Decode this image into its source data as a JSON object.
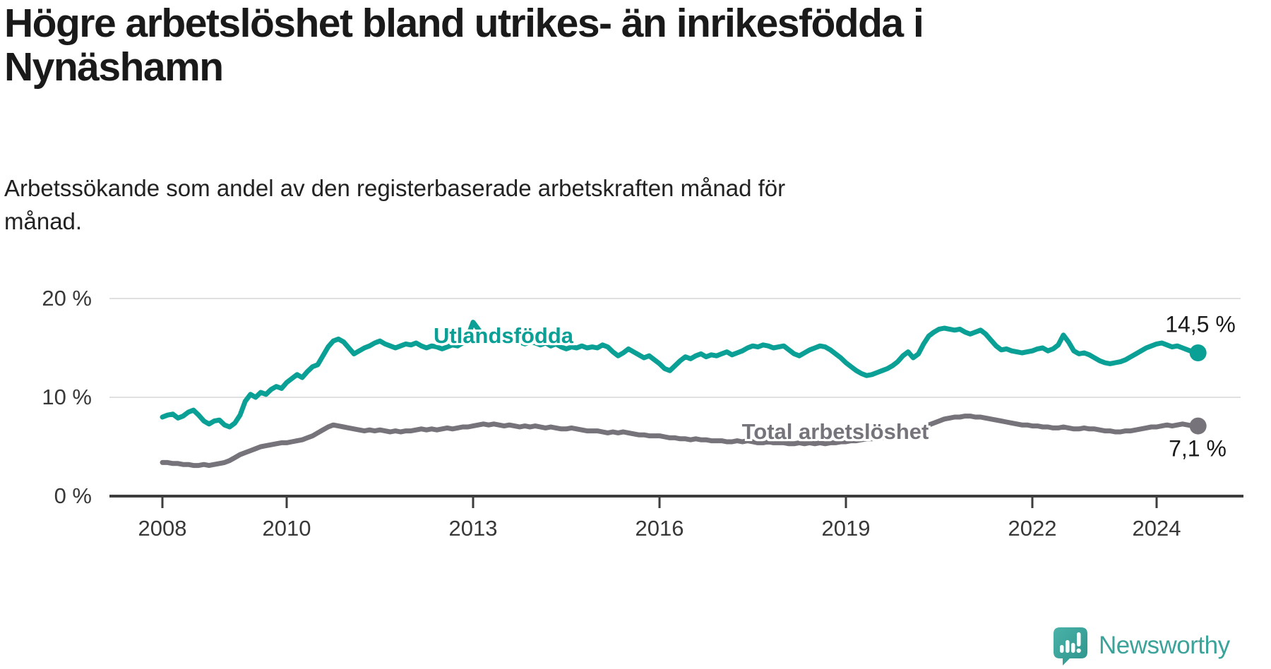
{
  "title": {
    "line1": "Högre arbetslöshet bland utrikes- än inrikesfödda i",
    "line2": "Nynäshamn"
  },
  "subtitle": {
    "line1": "Arbetssökande som andel av den registerbaserade arbetskraften månad för",
    "line2": "månad."
  },
  "branding": {
    "logo_text": "Newsworthy",
    "logo_icon": "newsworthy-speech-bubble-bar-chart-icon"
  },
  "colors": {
    "series_utlandsfodda": "#0aa096",
    "series_total": "#76737a",
    "grid": "#e0e0e0",
    "axis": "#3d3d3d",
    "text": "#1a1a1a",
    "logo_teal": "#3ba39a"
  },
  "chart_data": {
    "type": "line",
    "unit": "%",
    "frequency": "monthly",
    "x_start": "2008-01",
    "x_end": "2024-09",
    "xlim": [
      2007.3,
      2025.6
    ],
    "ylim": [
      0,
      21.5
    ],
    "grid": "horizontal-only",
    "legend_position": "inline-labels-on-lines",
    "x_ticks": [
      2008,
      2010,
      2013,
      2016,
      2019,
      2022,
      2024
    ],
    "y_ticks": [
      {
        "label": "0 %",
        "value": 0
      },
      {
        "label": "10 %",
        "value": 10
      },
      {
        "label": "20 %",
        "value": 20
      }
    ],
    "series": [
      {
        "name": "Utlandsfödda",
        "color": "#0aa096",
        "end_label": "14,5 %",
        "end_value": 14.5,
        "values": [
          8.0,
          8.2,
          8.3,
          7.9,
          8.1,
          8.5,
          8.7,
          8.2,
          7.6,
          7.3,
          7.6,
          7.7,
          7.2,
          7.0,
          7.4,
          8.2,
          9.6,
          10.3,
          10.0,
          10.5,
          10.3,
          10.8,
          11.1,
          10.9,
          11.5,
          11.9,
          12.3,
          12.0,
          12.6,
          13.1,
          13.3,
          14.2,
          15.1,
          15.7,
          15.9,
          15.6,
          15.0,
          14.4,
          14.7,
          15.0,
          15.2,
          15.5,
          15.7,
          15.4,
          15.2,
          15.0,
          15.2,
          15.4,
          15.3,
          15.5,
          15.2,
          15.0,
          15.2,
          15.1,
          14.9,
          15.1,
          15.3,
          15.2,
          15.5,
          16.2,
          17.6,
          16.9,
          16.2,
          16.0,
          16.4,
          16.1,
          15.9,
          15.7,
          15.9,
          15.6,
          15.4,
          15.6,
          15.5,
          15.3,
          15.5,
          15.2,
          15.4,
          15.1,
          14.9,
          15.1,
          15.0,
          15.2,
          15.0,
          15.1,
          15.0,
          15.3,
          15.1,
          14.6,
          14.2,
          14.5,
          14.9,
          14.6,
          14.3,
          14.0,
          14.2,
          13.8,
          13.4,
          12.9,
          12.7,
          13.2,
          13.7,
          14.1,
          13.9,
          14.2,
          14.4,
          14.1,
          14.3,
          14.2,
          14.4,
          14.6,
          14.3,
          14.5,
          14.7,
          15.0,
          15.2,
          15.1,
          15.3,
          15.2,
          15.0,
          15.1,
          15.2,
          14.8,
          14.4,
          14.2,
          14.5,
          14.8,
          15.0,
          15.2,
          15.1,
          14.8,
          14.4,
          14.0,
          13.5,
          13.1,
          12.7,
          12.4,
          12.2,
          12.3,
          12.5,
          12.7,
          12.9,
          13.2,
          13.6,
          14.2,
          14.6,
          14.0,
          14.4,
          15.4,
          16.2,
          16.6,
          16.9,
          17.0,
          16.9,
          16.8,
          16.9,
          16.6,
          16.4,
          16.6,
          16.8,
          16.4,
          15.8,
          15.2,
          14.8,
          14.9,
          14.7,
          14.6,
          14.5,
          14.6,
          14.7,
          14.9,
          15.0,
          14.7,
          14.9,
          15.3,
          16.3,
          15.6,
          14.7,
          14.4,
          14.5,
          14.3,
          14.0,
          13.7,
          13.5,
          13.4,
          13.5,
          13.6,
          13.8,
          14.1,
          14.4,
          14.7,
          15.0,
          15.2,
          15.4,
          15.5,
          15.3,
          15.1,
          15.2,
          15.0,
          14.8,
          14.6,
          14.5
        ]
      },
      {
        "name": "Total arbetslöshet",
        "color": "#76737a",
        "end_label": "7,1 %",
        "end_value": 7.1,
        "values": [
          3.4,
          3.4,
          3.3,
          3.3,
          3.2,
          3.2,
          3.1,
          3.1,
          3.2,
          3.1,
          3.2,
          3.3,
          3.4,
          3.6,
          3.9,
          4.2,
          4.4,
          4.6,
          4.8,
          5.0,
          5.1,
          5.2,
          5.3,
          5.4,
          5.4,
          5.5,
          5.6,
          5.7,
          5.9,
          6.1,
          6.4,
          6.7,
          7.0,
          7.2,
          7.1,
          7.0,
          6.9,
          6.8,
          6.7,
          6.6,
          6.7,
          6.6,
          6.7,
          6.6,
          6.5,
          6.6,
          6.5,
          6.6,
          6.6,
          6.7,
          6.8,
          6.7,
          6.8,
          6.7,
          6.8,
          6.9,
          6.8,
          6.9,
          7.0,
          7.0,
          7.1,
          7.2,
          7.3,
          7.2,
          7.3,
          7.2,
          7.1,
          7.2,
          7.1,
          7.0,
          7.1,
          7.0,
          7.1,
          7.0,
          6.9,
          7.0,
          6.9,
          6.8,
          6.8,
          6.9,
          6.8,
          6.7,
          6.6,
          6.6,
          6.6,
          6.5,
          6.4,
          6.5,
          6.4,
          6.5,
          6.4,
          6.3,
          6.2,
          6.2,
          6.1,
          6.1,
          6.1,
          6.0,
          5.9,
          5.9,
          5.8,
          5.8,
          5.7,
          5.8,
          5.7,
          5.7,
          5.6,
          5.6,
          5.6,
          5.5,
          5.5,
          5.6,
          5.5,
          5.6,
          5.5,
          5.4,
          5.4,
          5.5,
          5.4,
          5.4,
          5.4,
          5.3,
          5.3,
          5.4,
          5.3,
          5.4,
          5.3,
          5.4,
          5.3,
          5.4,
          5.4,
          5.5,
          5.5,
          5.6,
          5.6,
          5.7,
          5.8,
          5.8,
          5.9,
          5.9,
          6.0,
          6.0,
          6.1,
          6.1,
          6.1,
          6.2,
          6.5,
          6.9,
          7.2,
          7.4,
          7.6,
          7.8,
          7.9,
          8.0,
          8.0,
          8.1,
          8.1,
          8.0,
          8.0,
          7.9,
          7.8,
          7.7,
          7.6,
          7.5,
          7.4,
          7.3,
          7.2,
          7.2,
          7.1,
          7.1,
          7.0,
          7.0,
          6.9,
          6.9,
          7.0,
          6.9,
          6.8,
          6.8,
          6.9,
          6.8,
          6.8,
          6.7,
          6.6,
          6.6,
          6.5,
          6.5,
          6.6,
          6.6,
          6.7,
          6.8,
          6.9,
          7.0,
          7.0,
          7.1,
          7.2,
          7.1,
          7.2,
          7.3,
          7.2,
          7.1,
          7.1
        ]
      }
    ]
  }
}
